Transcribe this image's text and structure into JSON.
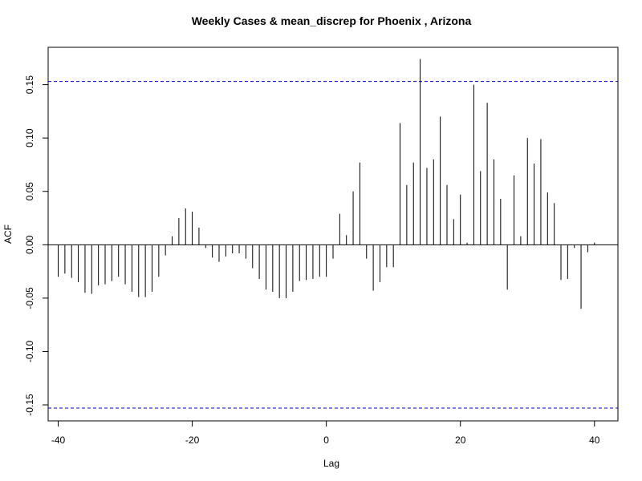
{
  "chart_data": {
    "type": "bar",
    "title": "Weekly Cases & mean_discrep for Phoenix , Arizona",
    "xlabel": "Lag",
    "ylabel": "ACF",
    "xlim": [
      -41.5,
      43.5
    ],
    "ylim": [
      -0.165,
      0.185
    ],
    "xticks": [
      -40,
      -20,
      0,
      20,
      40
    ],
    "yticks": [
      -0.15,
      -0.1,
      -0.05,
      0.0,
      0.05,
      0.1,
      0.15
    ],
    "ytick_labels": [
      "-0.15",
      "-0.10",
      "-0.05",
      "0.00",
      "0.05",
      "0.10",
      "0.15"
    ],
    "confidence_bound": 0.153,
    "colors": {
      "bars": "#000000",
      "confidence": "#0000cc",
      "zero_line": "#000000"
    },
    "lags": [
      -40,
      -39,
      -38,
      -37,
      -36,
      -35,
      -34,
      -33,
      -32,
      -31,
      -30,
      -29,
      -28,
      -27,
      -26,
      -25,
      -24,
      -23,
      -22,
      -21,
      -20,
      -19,
      -18,
      -17,
      -16,
      -15,
      -14,
      -13,
      -12,
      -11,
      -10,
      -9,
      -8,
      -7,
      -6,
      -5,
      -4,
      -3,
      -2,
      -1,
      0,
      1,
      2,
      3,
      4,
      5,
      6,
      7,
      8,
      9,
      10,
      11,
      12,
      13,
      14,
      15,
      16,
      17,
      18,
      19,
      20,
      21,
      22,
      23,
      24,
      25,
      26,
      27,
      28,
      29,
      30,
      31,
      32,
      33,
      34,
      35,
      36,
      37,
      38,
      39,
      40
    ],
    "values": [
      -0.03,
      -0.027,
      -0.031,
      -0.035,
      -0.045,
      -0.046,
      -0.038,
      -0.037,
      -0.034,
      -0.03,
      -0.037,
      -0.044,
      -0.049,
      -0.049,
      -0.044,
      -0.03,
      -0.01,
      0.008,
      0.025,
      0.034,
      0.031,
      0.016,
      -0.003,
      -0.012,
      -0.016,
      -0.011,
      -0.008,
      -0.008,
      -0.013,
      -0.022,
      -0.032,
      -0.042,
      -0.044,
      -0.05,
      -0.05,
      -0.044,
      -0.034,
      -0.033,
      -0.032,
      -0.03,
      -0.03,
      -0.013,
      0.029,
      0.009,
      0.05,
      0.077,
      -0.013,
      -0.043,
      -0.035,
      -0.021,
      -0.021,
      0.114,
      0.056,
      0.077,
      0.174,
      0.072,
      0.08,
      0.12,
      0.056,
      0.024,
      0.047,
      0.002,
      0.15,
      0.069,
      0.133,
      0.08,
      0.043,
      -0.042,
      0.065,
      0.008,
      0.1,
      0.076,
      0.099,
      0.049,
      0.039,
      -0.033,
      -0.032,
      -0.003,
      -0.06,
      -0.007,
      0.002
    ]
  }
}
